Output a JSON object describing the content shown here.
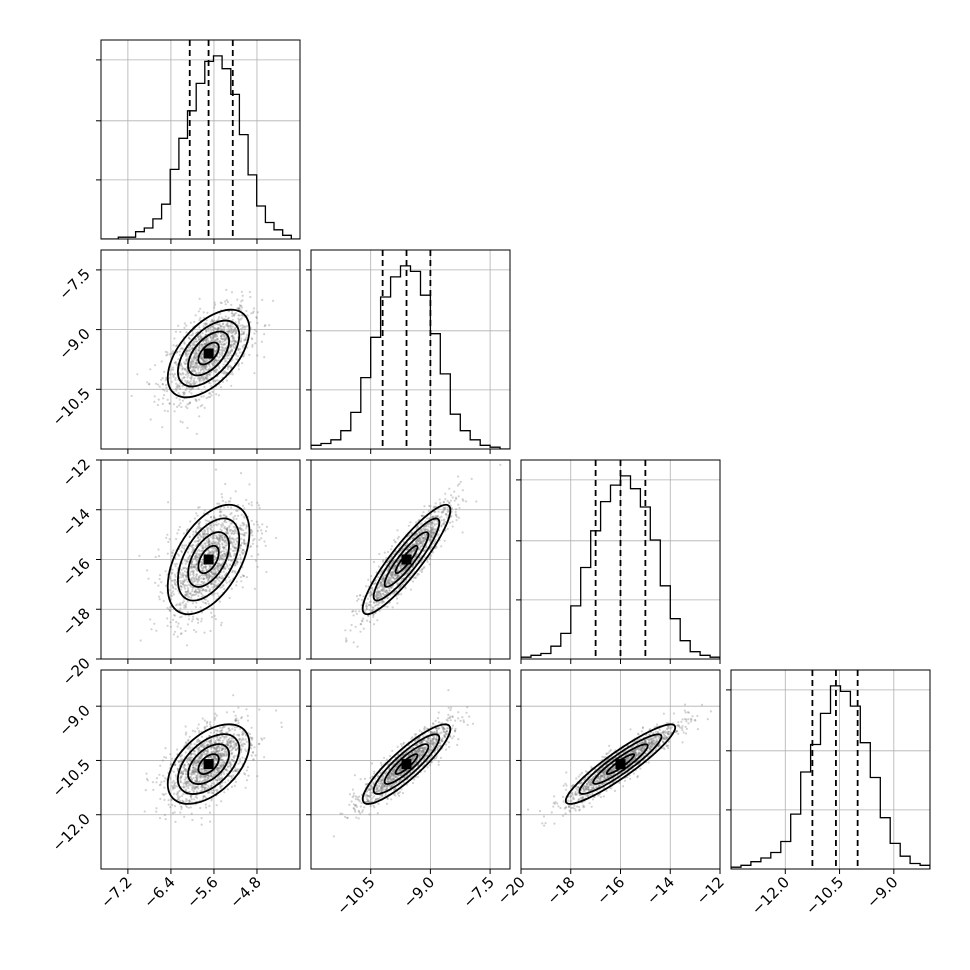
{
  "chart_data": {
    "type": "corner",
    "parameters": [
      {
        "mean": -5.7,
        "sd": 0.38,
        "range": [
          -7.7,
          -4.0
        ],
        "ticks": [
          -7.2,
          -6.4,
          -5.6,
          -4.8
        ],
        "tick_labels": [
          "−7.2",
          "−6.4",
          "−5.6",
          "−4.8"
        ],
        "quantiles": [
          -6.05,
          -5.7,
          -5.25
        ]
      },
      {
        "mean": -9.6,
        "sd": 0.55,
        "range": [
          -12.0,
          -7.0
        ],
        "ticks": [
          -10.5,
          -9.0,
          -7.5
        ],
        "tick_labels": [
          "−10.5",
          "−9.0",
          "−7.5"
        ],
        "quantiles": [
          -10.2,
          -9.6,
          -9.0
        ]
      },
      {
        "mean": -16.0,
        "sd": 1.1,
        "range": [
          -20,
          -12
        ],
        "ticks": [
          -20,
          -18,
          -16,
          -14,
          -12
        ],
        "tick_labels": [
          "−20",
          "−18",
          "−16",
          "−14",
          "−12"
        ],
        "quantiles": [
          -17.0,
          -16.0,
          -15.0
        ]
      },
      {
        "mean": -10.6,
        "sd": 0.55,
        "range": [
          -13.5,
          -8.0
        ],
        "ticks": [
          -12.0,
          -10.5,
          -9.0
        ],
        "tick_labels": [
          "−12.0",
          "−10.5",
          "−9.0"
        ],
        "quantiles": [
          -11.25,
          -10.6,
          -10.0
        ]
      }
    ],
    "pairs": [
      {
        "x": 0,
        "y": 1,
        "corr": 0.55
      },
      {
        "x": 0,
        "y": 2,
        "corr": 0.5
      },
      {
        "x": 1,
        "y": 2,
        "corr": 0.9
      },
      {
        "x": 0,
        "y": 3,
        "corr": 0.5
      },
      {
        "x": 1,
        "y": 3,
        "corr": 0.88
      },
      {
        "x": 2,
        "y": 3,
        "corr": 0.92
      }
    ],
    "histograms": [
      [
        0.0,
        0.0,
        0.01,
        0.01,
        0.04,
        0.06,
        0.11,
        0.19,
        0.38,
        0.55,
        0.7,
        0.85,
        0.97,
        1.0,
        0.93,
        0.79,
        0.57,
        0.35,
        0.18,
        0.09,
        0.05,
        0.02,
        0.0
      ],
      [
        0.02,
        0.03,
        0.05,
        0.1,
        0.2,
        0.39,
        0.61,
        0.83,
        0.94,
        1.0,
        0.97,
        0.84,
        0.63,
        0.41,
        0.19,
        0.1,
        0.05,
        0.02,
        0.01,
        0.0
      ],
      [
        0.01,
        0.02,
        0.03,
        0.07,
        0.14,
        0.29,
        0.5,
        0.7,
        0.86,
        0.95,
        1.0,
        0.93,
        0.83,
        0.65,
        0.4,
        0.22,
        0.1,
        0.04,
        0.02,
        0.01
      ],
      [
        0.01,
        0.02,
        0.04,
        0.06,
        0.09,
        0.15,
        0.3,
        0.53,
        0.68,
        0.85,
        1.0,
        0.97,
        0.89,
        0.69,
        0.5,
        0.28,
        0.14,
        0.07,
        0.03,
        0.02
      ]
    ],
    "grid": true
  }
}
